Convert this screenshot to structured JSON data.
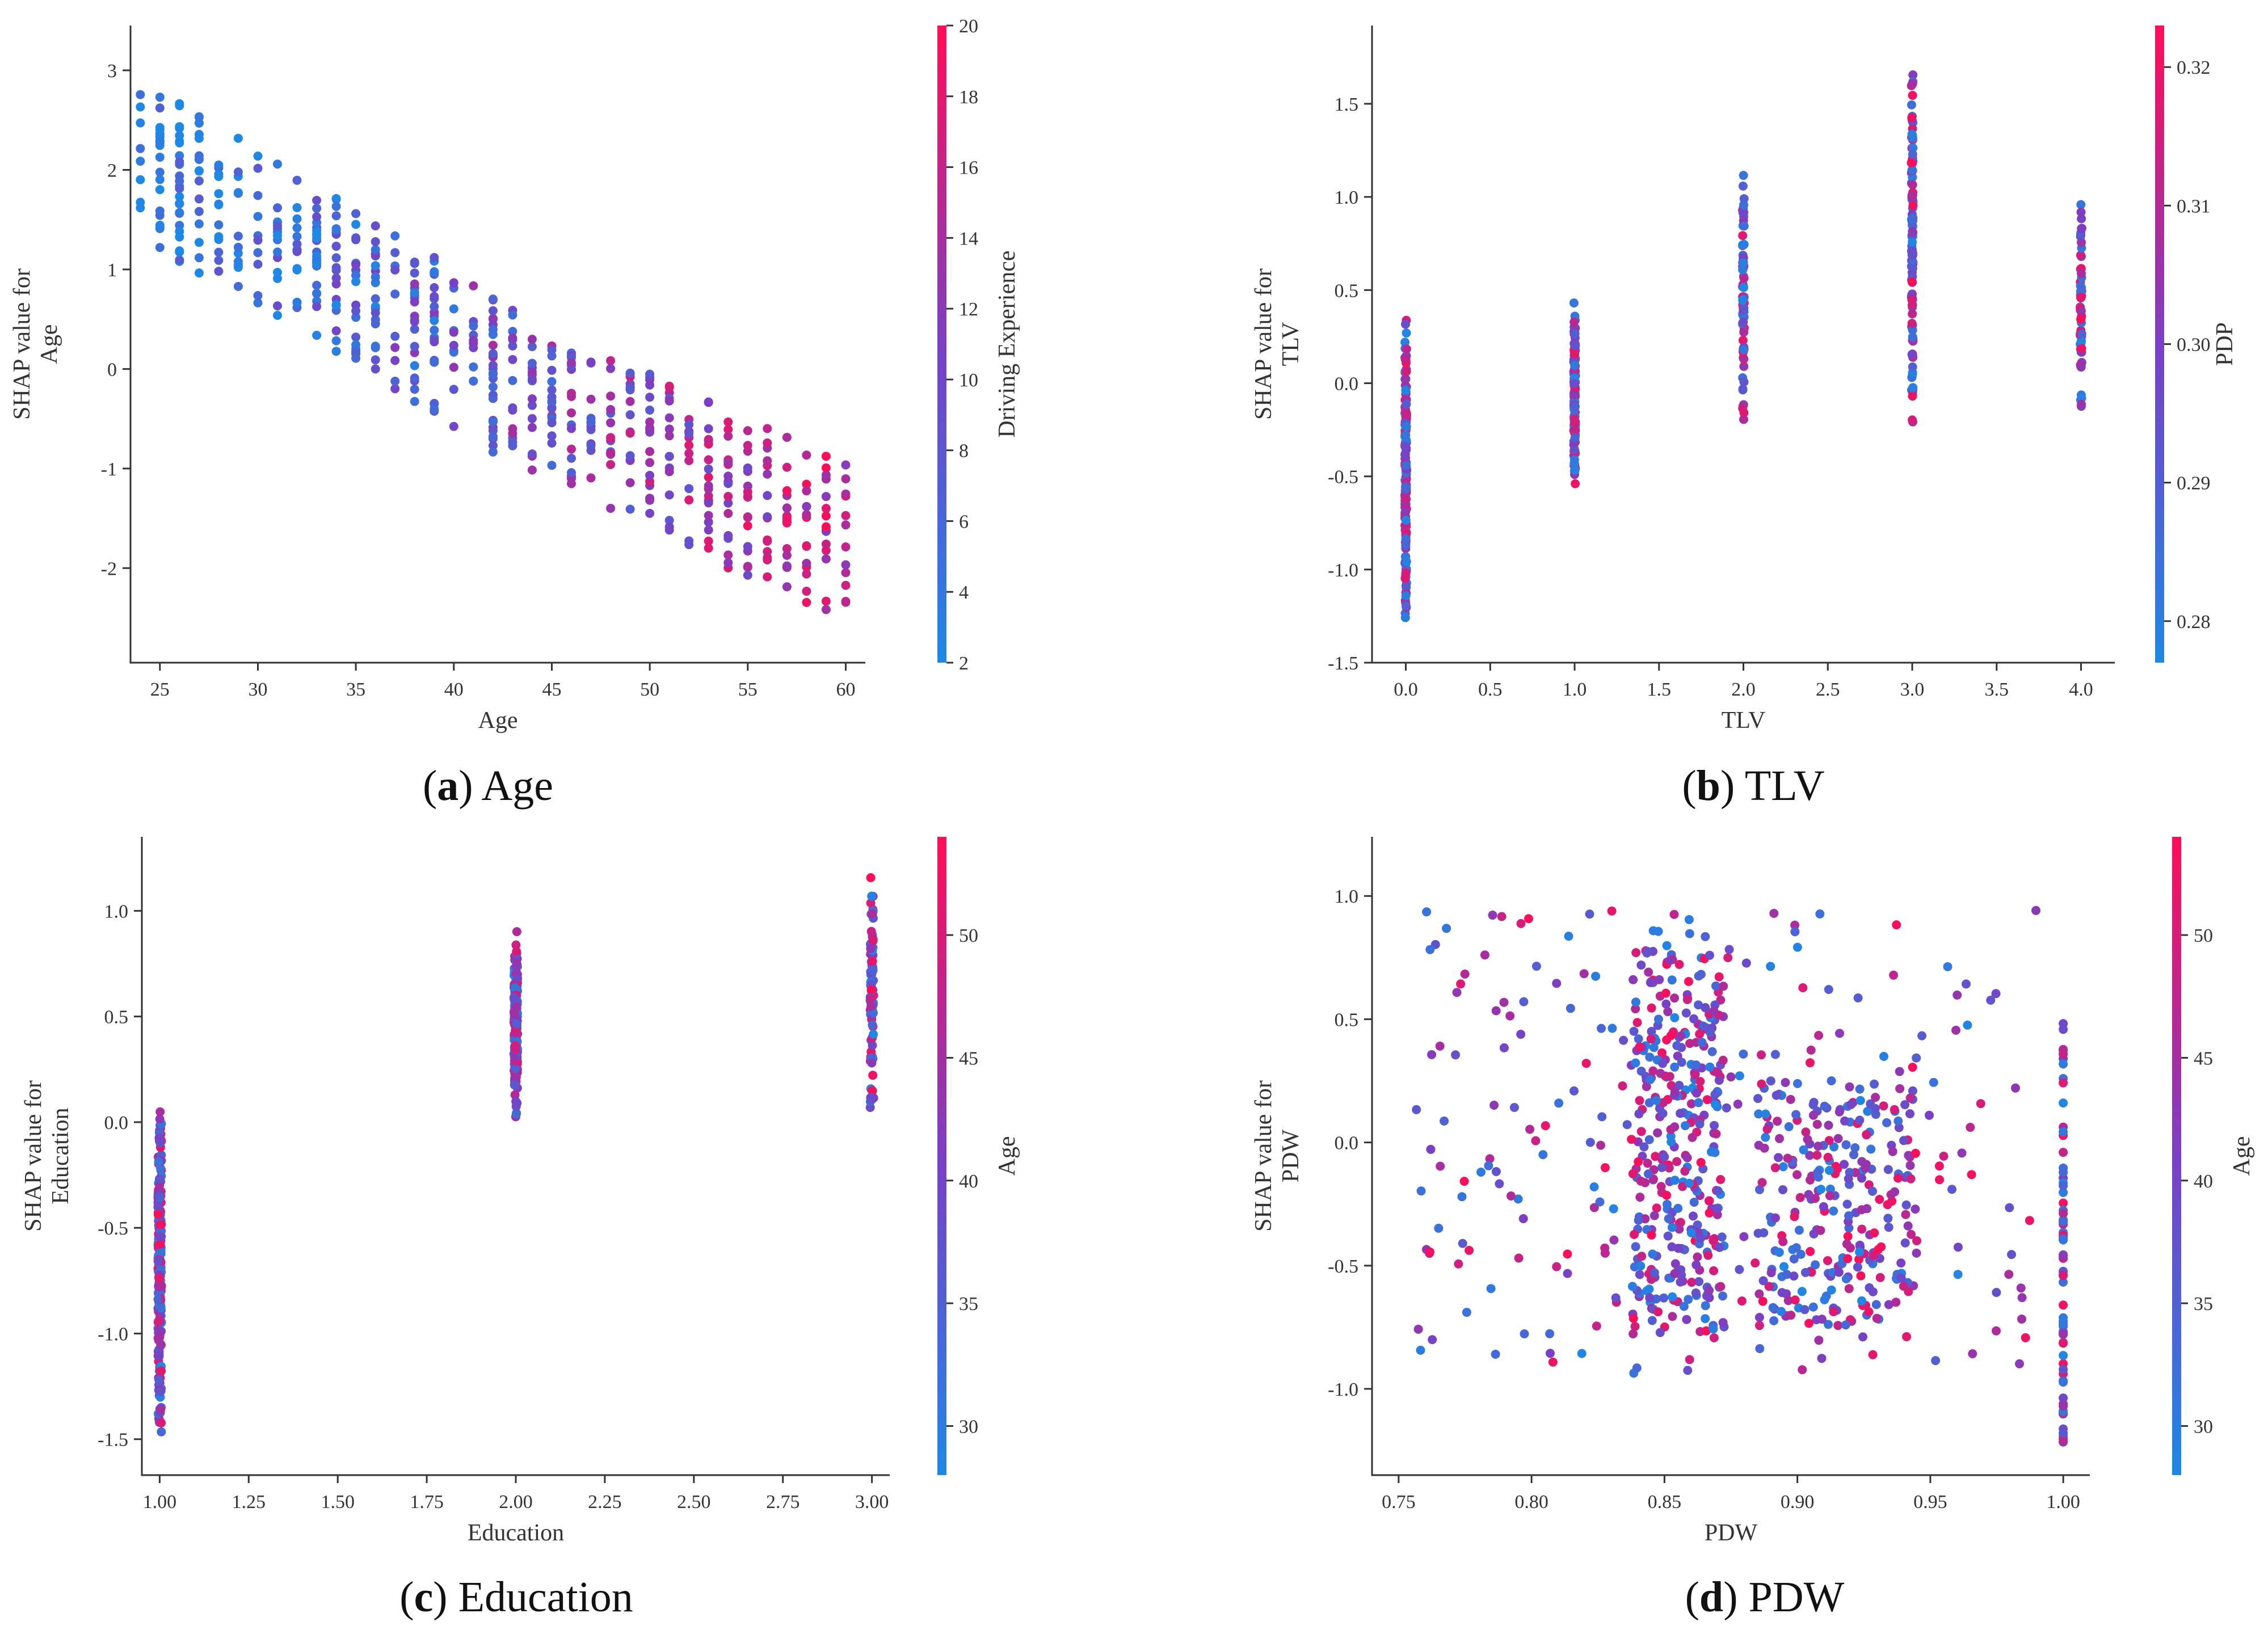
{
  "chart_data": [
    {
      "id": "a",
      "type": "scatter",
      "caption_letter": "a",
      "caption_text": "Age",
      "xlabel": "Age",
      "ylabel_line1": "SHAP value for",
      "ylabel_line2": "Age",
      "xlim": [
        23.5,
        61
      ],
      "ylim": [
        -2.95,
        3.45
      ],
      "xticks": [
        25,
        30,
        35,
        40,
        45,
        50,
        55,
        60
      ],
      "yticks": [
        -2,
        -1,
        0,
        1,
        2,
        3
      ],
      "xtick_decimals": 0,
      "ytick_decimals": 0,
      "colorbar": {
        "label": "Driving Experience",
        "min": 2,
        "max": 20,
        "ticks": [
          2,
          4,
          6,
          8,
          10,
          12,
          14,
          16,
          18,
          20
        ],
        "decimals": 0
      },
      "generator": {
        "kind": "age",
        "n": 620,
        "seed": 11
      }
    },
    {
      "id": "b",
      "type": "scatter",
      "caption_letter": "b",
      "caption_text": "TLV",
      "xlabel": "TLV",
      "ylabel_line1": "SHAP value for",
      "ylabel_line2": "TLV",
      "xlim": [
        -0.2,
        4.2
      ],
      "ylim": [
        -1.5,
        1.92
      ],
      "xticks": [
        0.0,
        0.5,
        1.0,
        1.5,
        2.0,
        2.5,
        3.0,
        3.5,
        4.0
      ],
      "yticks": [
        -1.5,
        -1.0,
        -0.5,
        0.0,
        0.5,
        1.0,
        1.5
      ],
      "xtick_decimals": 1,
      "ytick_decimals": 1,
      "colorbar": {
        "label": "PDP",
        "min": 0.277,
        "max": 0.323,
        "ticks": [
          0.28,
          0.29,
          0.3,
          0.31,
          0.32
        ],
        "decimals": 2
      },
      "generator": {
        "kind": "tlv",
        "seed": 23,
        "groups": [
          {
            "x": 0.0,
            "n": 170,
            "ymin": -1.36,
            "ymax": 0.4
          },
          {
            "x": 1.0,
            "n": 130,
            "ymin": -0.58,
            "ymax": 0.45
          },
          {
            "x": 2.0,
            "n": 80,
            "ymin": -0.26,
            "ymax": 1.19
          },
          {
            "x": 3.0,
            "n": 120,
            "ymin": -0.31,
            "ymax": 1.75
          },
          {
            "x": 4.0,
            "n": 60,
            "ymin": -0.23,
            "ymax": 1.13
          }
        ]
      }
    },
    {
      "id": "c",
      "type": "scatter",
      "caption_letter": "c",
      "caption_text": "Education",
      "xlabel": "Education",
      "ylabel_line1": "SHAP value for",
      "ylabel_line2": "Education",
      "xlim": [
        0.95,
        3.05
      ],
      "ylim": [
        -1.67,
        1.35
      ],
      "xticks": [
        1.0,
        1.25,
        1.5,
        1.75,
        2.0,
        2.25,
        2.5,
        2.75,
        3.0
      ],
      "yticks": [
        -1.5,
        -1.0,
        -0.5,
        0.0,
        0.5,
        1.0
      ],
      "xtick_decimals": 2,
      "ytick_decimals": 1,
      "colorbar": {
        "label": "Age",
        "min": 28,
        "max": 54,
        "ticks": [
          30,
          35,
          40,
          45,
          50
        ],
        "decimals": 0
      },
      "generator": {
        "kind": "edu",
        "seed": 37,
        "groups": [
          {
            "x": 1.0,
            "n": 240,
            "ymin": -1.52,
            "ymax": 0.16
          },
          {
            "x": 2.0,
            "n": 200,
            "ymin": -0.02,
            "ymax": 0.96
          },
          {
            "x": 3.0,
            "n": 90,
            "ymin": -0.07,
            "ymax": 1.26
          }
        ]
      }
    },
    {
      "id": "d",
      "type": "scatter",
      "caption_letter": "d",
      "caption_text": "PDW",
      "xlabel": "PDW",
      "ylabel_line1": "SHAP value for",
      "ylabel_line2": "PDW",
      "xlim": [
        0.74,
        1.01
      ],
      "ylim": [
        -1.35,
        1.24
      ],
      "xticks": [
        0.75,
        0.8,
        0.85,
        0.9,
        0.95,
        1.0
      ],
      "yticks": [
        -1.0,
        -0.5,
        0.0,
        0.5,
        1.0
      ],
      "xtick_decimals": 2,
      "ytick_decimals": 1,
      "colorbar": {
        "label": "Age",
        "min": 28,
        "max": 54,
        "ticks": [
          30,
          35,
          40,
          45,
          50
        ],
        "decimals": 0
      },
      "generator": {
        "kind": "pdw",
        "n": 900,
        "seed": 53
      }
    }
  ]
}
